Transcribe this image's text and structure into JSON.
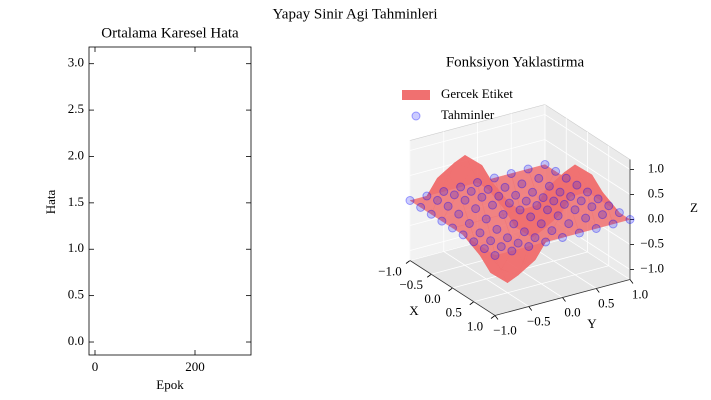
{
  "title": "Yapay Sinir Agi Tahminleri",
  "chart_data": [
    {
      "type": "line",
      "title": "Ortalama Karesel Hata",
      "x_label": "Epok",
      "y_label": "Hata",
      "xlim": [
        -12,
        312
      ],
      "xticks": [
        0,
        200
      ],
      "ylim": [
        -0.14,
        3.18
      ],
      "yticks": [
        {
          "value": 0,
          "label": "0.0"
        },
        0.5,
        {
          "value": 1,
          "label": "1.0"
        },
        1.5,
        {
          "value": 2,
          "label": "2.0"
        },
        2.5,
        {
          "value": 3,
          "label": "3.0"
        }
      ]
    },
    {
      "type": "surface3d",
      "title": "Fonksiyon Yaklastirma",
      "x_label": "X",
      "y_label": "Y",
      "z_label": "Z",
      "xlim": [
        -1,
        1
      ],
      "ylim": [
        -1,
        1
      ],
      "zlim": [
        -1.2,
        1.2
      ],
      "xticks": [
        {
          "value": -1,
          "label": "−1.0"
        },
        {
          "value": -0.5,
          "label": "−0.5"
        },
        {
          "value": 0,
          "label": "0.0"
        },
        0.5,
        {
          "value": 1,
          "label": "1.0"
        }
      ],
      "yticks": [
        {
          "value": -1,
          "label": "−1.0"
        },
        {
          "value": -0.5,
          "label": "−0.5"
        },
        {
          "value": 0,
          "label": "0.0"
        },
        0.5,
        {
          "value": 1,
          "label": "1.0"
        }
      ],
      "zticks": [
        {
          "value": -1,
          "label": "−1.0"
        },
        {
          "value": -0.5,
          "label": "−0.5"
        },
        {
          "value": 0,
          "label": "0.0"
        },
        0.5,
        {
          "value": 1,
          "label": "1.0"
        }
      ],
      "legend": "upper left",
      "x": [
        -1,
        -0.75,
        -0.5,
        -0.25,
        0,
        0.25,
        0.5,
        0.75,
        1
      ],
      "y": [
        -1,
        -0.75,
        -0.5,
        -0.25,
        0,
        0.25,
        0.5,
        0.75,
        1
      ],
      "series": [
        {
          "name": "Gercek Etiket",
          "color": "#f07070",
          "values": [
            [
              0,
              0,
              0,
              0,
              0,
              0,
              0,
              0,
              0
            ],
            [
              0,
              0.5,
              0.71,
              0.5,
              0,
              -0.5,
              -0.71,
              -0.5,
              0
            ],
            [
              0,
              0.71,
              1,
              0.71,
              0,
              -0.71,
              -1,
              -0.71,
              0
            ],
            [
              0,
              0.5,
              0.71,
              0.5,
              0,
              -0.5,
              -0.71,
              -0.5,
              0
            ],
            [
              0,
              0,
              0,
              0,
              0,
              0,
              0,
              0,
              0
            ],
            [
              0,
              -0.5,
              -0.71,
              -0.5,
              0,
              0.5,
              0.71,
              0.5,
              0
            ],
            [
              0,
              -0.71,
              -1,
              -0.71,
              0,
              0.71,
              1,
              0.71,
              0
            ],
            [
              0,
              -0.5,
              -0.71,
              -0.5,
              0,
              0.5,
              0.71,
              0.5,
              0
            ],
            [
              0,
              0,
              0,
              0,
              0,
              0,
              0,
              0,
              0
            ]
          ]
        },
        {
          "name": "Tahminler",
          "color": "#0000ff",
          "values": [
            [
              0,
              0,
              0,
              0,
              0,
              0,
              0,
              0,
              0
            ],
            [
              0,
              0.05,
              0.07,
              0.05,
              0,
              -0.05,
              -0.07,
              -0.05,
              0
            ],
            [
              0,
              0.07,
              0.1,
              0.07,
              0,
              -0.07,
              -0.1,
              -0.07,
              0
            ],
            [
              0,
              0.05,
              0.07,
              0.05,
              0,
              -0.05,
              -0.07,
              -0.05,
              0
            ],
            [
              0,
              0,
              0,
              0,
              0,
              0,
              0,
              0,
              0
            ],
            [
              0,
              -0.05,
              -0.07,
              -0.05,
              0,
              0.05,
              0.07,
              0.05,
              0
            ],
            [
              0,
              -0.07,
              -0.1,
              -0.07,
              0,
              0.07,
              0.1,
              0.07,
              0
            ],
            [
              0,
              -0.05,
              -0.07,
              -0.05,
              0,
              0.05,
              0.07,
              0.05,
              0
            ],
            [
              0,
              0,
              0,
              0,
              0,
              0,
              0,
              0,
              0
            ]
          ]
        }
      ]
    }
  ]
}
